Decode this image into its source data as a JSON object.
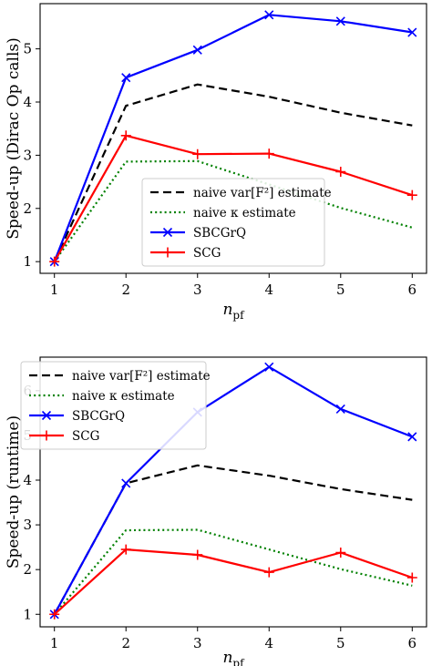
{
  "chart_data": [
    {
      "type": "line",
      "xlabel": "n",
      "xlabel_sub": "pf",
      "ylabel": "Speed-up (Dirac Op calls)",
      "x": [
        1,
        2,
        3,
        4,
        5,
        6
      ],
      "xlim": [
        0.8,
        6.2
      ],
      "ylim": [
        0.78,
        5.85
      ],
      "xticks": [
        1,
        2,
        3,
        4,
        5,
        6
      ],
      "yticks": [
        1,
        2,
        3,
        4,
        5
      ],
      "legend_loc": "center-right",
      "series": [
        {
          "name": "naive var[F²] estimate",
          "color": "#000000",
          "style": "dashed",
          "marker": "none",
          "y": [
            1.0,
            3.93,
            4.33,
            4.1,
            3.8,
            3.56
          ]
        },
        {
          "name": "naive κ estimate",
          "color": "#008000",
          "style": "dotted",
          "marker": "none",
          "y": [
            1.0,
            2.88,
            2.89,
            2.45,
            2.01,
            1.64
          ]
        },
        {
          "name": "SBCGrQ",
          "color": "#0000ff",
          "style": "solid",
          "marker": "x",
          "y": [
            1.0,
            4.46,
            4.98,
            5.64,
            5.52,
            5.31
          ]
        },
        {
          "name": "SCG",
          "color": "#ff0000",
          "style": "solid",
          "marker": "plus",
          "y": [
            1.0,
            3.37,
            3.02,
            3.03,
            2.69,
            2.25
          ]
        }
      ]
    },
    {
      "type": "line",
      "xlabel": "n",
      "xlabel_sub": "pf",
      "ylabel": "Speed-up (runtime)",
      "x": [
        1,
        2,
        3,
        4,
        5,
        6
      ],
      "xlim": [
        0.8,
        6.2
      ],
      "ylim": [
        0.72,
        6.75
      ],
      "xticks": [
        1,
        2,
        3,
        4,
        5,
        6
      ],
      "yticks": [
        1,
        2,
        3,
        4,
        5,
        6
      ],
      "legend_loc": "upper-left",
      "series": [
        {
          "name": "naive var[F²] estimate",
          "color": "#000000",
          "style": "dashed",
          "marker": "none",
          "y": [
            1.0,
            3.93,
            4.33,
            4.1,
            3.8,
            3.56
          ]
        },
        {
          "name": "naive κ estimate",
          "color": "#008000",
          "style": "dotted",
          "marker": "none",
          "y": [
            1.0,
            2.88,
            2.89,
            2.45,
            2.01,
            1.64
          ]
        },
        {
          "name": "SBCGrQ",
          "color": "#0000ff",
          "style": "solid",
          "marker": "x",
          "y": [
            1.0,
            3.93,
            5.52,
            6.53,
            5.59,
            4.97
          ]
        },
        {
          "name": "SCG",
          "color": "#ff0000",
          "style": "solid",
          "marker": "plus",
          "y": [
            1.0,
            2.45,
            2.33,
            1.94,
            2.38,
            1.82
          ]
        }
      ]
    }
  ]
}
